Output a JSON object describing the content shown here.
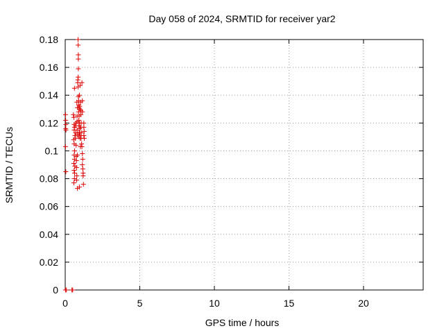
{
  "chart_data": {
    "type": "scatter",
    "title": "Day 058 of 2024, SRMTID for receiver yar2",
    "xlabel": "GPS time / hours",
    "ylabel": "SRMTID / TECUs",
    "xlim": [
      0,
      24
    ],
    "ylim": [
      0,
      0.18
    ],
    "xticks": [
      "0",
      "5",
      "10",
      "15",
      "20"
    ],
    "yticks": [
      "0",
      "0.02",
      "0.04",
      "0.06",
      "0.08",
      "0.1",
      "0.12",
      "0.14",
      "0.16",
      "0.18"
    ],
    "grid": true,
    "legend": "none",
    "marker": "+",
    "color": "#dd0000",
    "series": [
      {
        "points": [
          [
            0.02,
            0.126
          ],
          [
            0.03,
            0.122
          ],
          [
            0.04,
            0.119
          ],
          [
            0.03,
            0.116
          ],
          [
            0.05,
            0.115
          ],
          [
            0.02,
            0.103
          ],
          [
            0.04,
            0.085
          ],
          [
            0.02,
            0.0
          ],
          [
            0.08,
            0.0
          ],
          [
            0.45,
            0.0
          ],
          [
            0.5,
            0.0
          ],
          [
            0.55,
            0.126
          ],
          [
            0.58,
            0.124
          ],
          [
            0.6,
            0.119
          ],
          [
            0.62,
            0.117
          ],
          [
            0.6,
            0.115
          ],
          [
            0.57,
            0.108
          ],
          [
            0.6,
            0.105
          ],
          [
            0.63,
            0.1
          ],
          [
            0.6,
            0.097
          ],
          [
            0.62,
            0.094
          ],
          [
            0.58,
            0.091
          ],
          [
            0.65,
            0.089
          ],
          [
            0.6,
            0.086
          ],
          [
            0.63,
            0.084
          ],
          [
            0.62,
            0.08
          ],
          [
            0.58,
            0.077
          ],
          [
            0.62,
            0.145
          ],
          [
            0.65,
            0.111
          ],
          [
            0.68,
            0.109
          ],
          [
            0.7,
            0.113
          ],
          [
            0.72,
            0.12
          ],
          [
            0.7,
            0.118
          ],
          [
            0.73,
            0.104
          ],
          [
            0.74,
            0.096
          ],
          [
            0.75,
            0.093
          ],
          [
            0.76,
            0.088
          ],
          [
            0.78,
            0.082
          ],
          [
            0.76,
            0.079
          ],
          [
            0.78,
            0.135
          ],
          [
            0.8,
            0.125
          ],
          [
            0.8,
            0.121
          ],
          [
            0.82,
            0.131
          ],
          [
            0.8,
            0.115
          ],
          [
            0.83,
            0.112
          ],
          [
            0.82,
            0.097
          ],
          [
            0.82,
            0.073
          ],
          [
            0.84,
            0.149
          ],
          [
            0.85,
            0.151
          ],
          [
            0.86,
            0.18
          ],
          [
            0.87,
            0.176
          ],
          [
            0.88,
            0.169
          ],
          [
            0.88,
            0.166
          ],
          [
            0.88,
            0.159
          ],
          [
            0.87,
            0.153
          ],
          [
            0.86,
            0.146
          ],
          [
            0.88,
            0.139
          ],
          [
            0.9,
            0.136
          ],
          [
            0.9,
            0.133
          ],
          [
            0.92,
            0.131
          ],
          [
            0.9,
            0.128
          ],
          [
            0.93,
            0.125
          ],
          [
            0.91,
            0.122
          ],
          [
            0.92,
            0.118
          ],
          [
            0.93,
            0.113
          ],
          [
            0.92,
            0.11
          ],
          [
            0.95,
            0.074
          ],
          [
            0.95,
            0.14
          ],
          [
            0.97,
            0.132
          ],
          [
            0.98,
            0.13
          ],
          [
            0.96,
            0.12
          ],
          [
            0.98,
            0.116
          ],
          [
            0.97,
            0.113
          ],
          [
            1.0,
            0.111
          ],
          [
            1.0,
            0.109
          ],
          [
            1.02,
            0.103
          ],
          [
            1.0,
            0.147
          ],
          [
            1.03,
            0.135
          ],
          [
            1.05,
            0.129
          ],
          [
            1.05,
            0.126
          ],
          [
            1.07,
            0.12
          ],
          [
            1.05,
            0.117
          ],
          [
            1.08,
            0.113
          ],
          [
            1.07,
            0.109
          ],
          [
            1.1,
            0.105
          ],
          [
            1.12,
            0.103
          ],
          [
            1.12,
            0.149
          ],
          [
            1.15,
            0.136
          ],
          [
            1.15,
            0.128
          ],
          [
            1.15,
            0.098
          ],
          [
            1.17,
            0.094
          ],
          [
            1.15,
            0.09
          ],
          [
            1.18,
            0.087
          ],
          [
            1.2,
            0.084
          ],
          [
            1.2,
            0.082
          ],
          [
            1.22,
            0.076
          ],
          [
            1.25,
            0.12
          ],
          [
            1.25,
            0.117
          ],
          [
            1.27,
            0.114
          ],
          [
            1.25,
            0.111
          ],
          [
            1.28,
            0.109
          ]
        ]
      }
    ]
  }
}
